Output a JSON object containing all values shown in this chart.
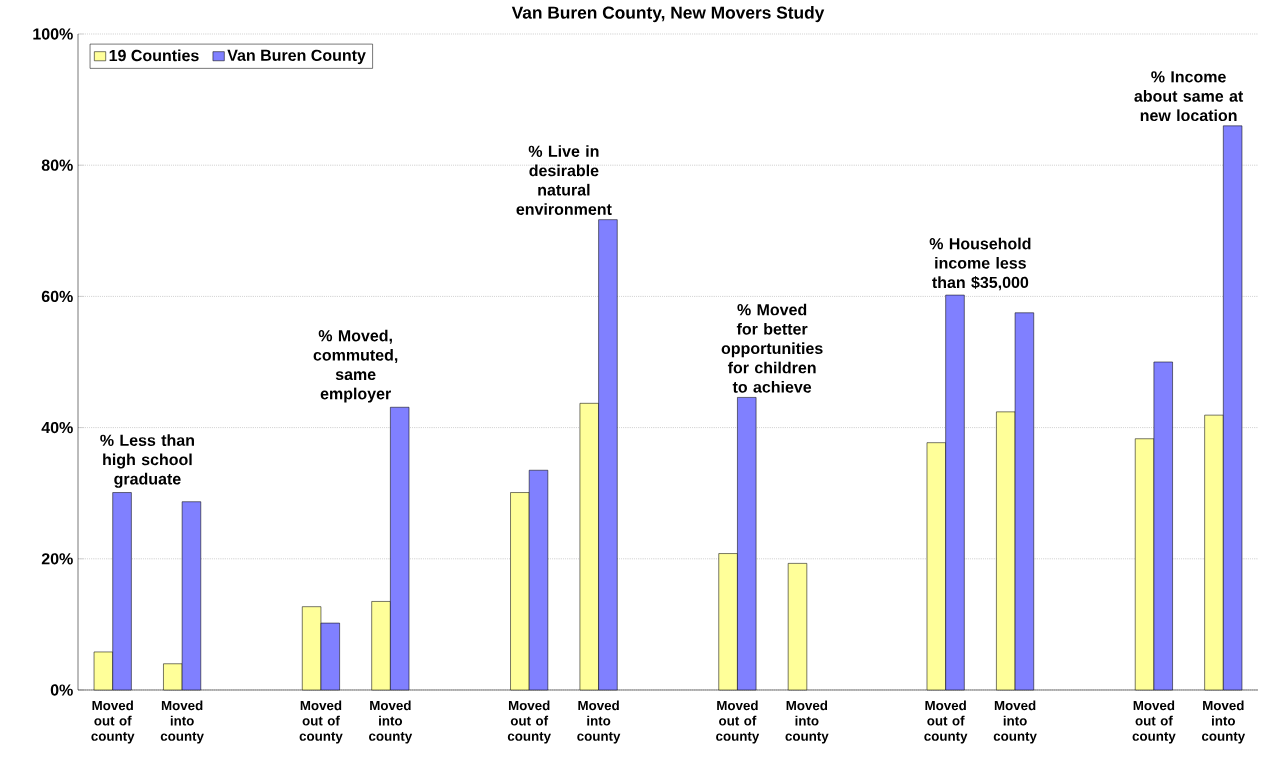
{
  "chart_data": {
    "type": "bar",
    "title": "Van Buren County, New Movers Study",
    "categories": [
      "Moved out of county",
      "Moved into county",
      null,
      "Moved out of county",
      "Moved into county",
      null,
      "Moved out of county",
      "Moved into county",
      null,
      "Moved out of county",
      "Moved into county",
      null,
      "Moved out of county",
      "Moved into county",
      null,
      "Moved out of county",
      "Moved into county"
    ],
    "series": [
      {
        "name": "19 Counties",
        "color": "#ffff99",
        "values": [
          5.8,
          4.0,
          null,
          12.7,
          13.5,
          null,
          30.1,
          43.7,
          null,
          20.8,
          19.3,
          null,
          37.7,
          42.4,
          null,
          38.3,
          41.9
        ]
      },
      {
        "name": "Van Buren County",
        "color": "#8080ff",
        "values": [
          30.1,
          28.7,
          null,
          10.2,
          43.1,
          null,
          33.5,
          71.7,
          null,
          44.6,
          null,
          null,
          60.2,
          57.5,
          null,
          50.0,
          86.0
        ]
      }
    ],
    "annotations": [
      "% Less than high school graduate",
      "% Moved, commuted, same employer",
      "% Live in desirable natural environment",
      "% Moved for better opportunities for children to achieve",
      "% Household income less than $35,000",
      "% Income about same at new location"
    ],
    "ylim": [
      0,
      100
    ],
    "yticks": [
      {
        "value": 0,
        "label": "0%"
      },
      {
        "value": 20,
        "label": "20%"
      },
      {
        "value": 40,
        "label": "40%"
      },
      {
        "value": 60,
        "label": "60%"
      },
      {
        "value": 80,
        "label": "80%"
      },
      {
        "value": 100,
        "label": "100%"
      }
    ],
    "grid": "y",
    "legend": "top left"
  }
}
